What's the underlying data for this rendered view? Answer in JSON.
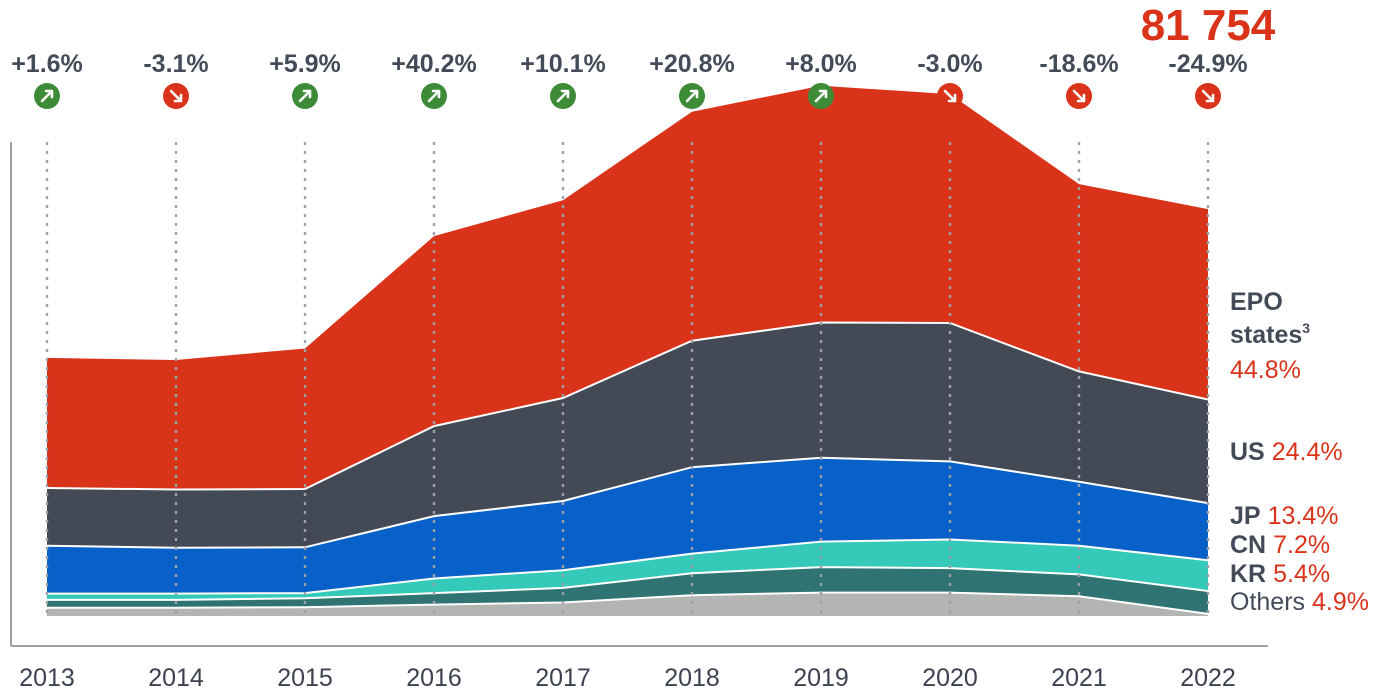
{
  "chart_data": {
    "type": "area",
    "stacked": true,
    "categories": [
      "2013",
      "2014",
      "2015",
      "2016",
      "2017",
      "2018",
      "2019",
      "2020",
      "2021",
      "2022"
    ],
    "total_label": "81 754",
    "series": [
      {
        "name": "Others",
        "share_label": "4.9%",
        "color": "#b2b5b2",
        "values": [
          1600,
          1600,
          1700,
          2200,
          2600,
          4000,
          4500,
          4500,
          3800,
          400
        ]
      },
      {
        "name": "KR",
        "share_label": "5.4%",
        "color": "#2f7472",
        "values": [
          1500,
          1500,
          1700,
          2200,
          2800,
          4200,
          4900,
          4700,
          4200,
          4400
        ]
      },
      {
        "name": "CN",
        "share_label": "7.2%",
        "color": "#35c9b9",
        "values": [
          1200,
          1200,
          1000,
          2800,
          3400,
          3800,
          4900,
          5500,
          5500,
          5900
        ]
      },
      {
        "name": "JP",
        "share_label": "13.4%",
        "color": "#0761c9",
        "values": [
          9200,
          8800,
          8800,
          12000,
          13300,
          16600,
          16100,
          15000,
          12300,
          11000
        ]
      },
      {
        "name": "US",
        "share_label": "24.4%",
        "color": "#434955",
        "values": [
          11100,
          11200,
          11200,
          17300,
          19800,
          24300,
          26000,
          26600,
          21200,
          19900
        ]
      },
      {
        "name": "EPO states",
        "name_line2": "states",
        "name_line1": "EPO",
        "superscript": "3",
        "share_label": "44.8%",
        "color": "#d9331a",
        "values": [
          25000,
          24900,
          27000,
          36500,
          38000,
          44000,
          45500,
          44000,
          36000,
          36600
        ]
      }
    ],
    "growth": [
      {
        "label": "+1.6%",
        "direction": "up"
      },
      {
        "label": "-3.1%",
        "direction": "down"
      },
      {
        "label": "+5.9%",
        "direction": "up"
      },
      {
        "label": "+40.2%",
        "direction": "up"
      },
      {
        "label": "+10.1%",
        "direction": "up"
      },
      {
        "label": "+20.8%",
        "direction": "up"
      },
      {
        "label": "+8.0%",
        "direction": "up"
      },
      {
        "label": "-3.0%",
        "direction": "down"
      },
      {
        "label": "-18.6%",
        "direction": "down"
      },
      {
        "label": "-24.9%",
        "direction": "down"
      }
    ],
    "colors": {
      "up": "#3d8b37",
      "down": "#d9331a",
      "axis": "#9ca1a8",
      "gridline": "#9ca1a8"
    },
    "ylim": [
      0,
      103000
    ],
    "grid": "vertical-dotted",
    "legend": "right, inline labels"
  }
}
